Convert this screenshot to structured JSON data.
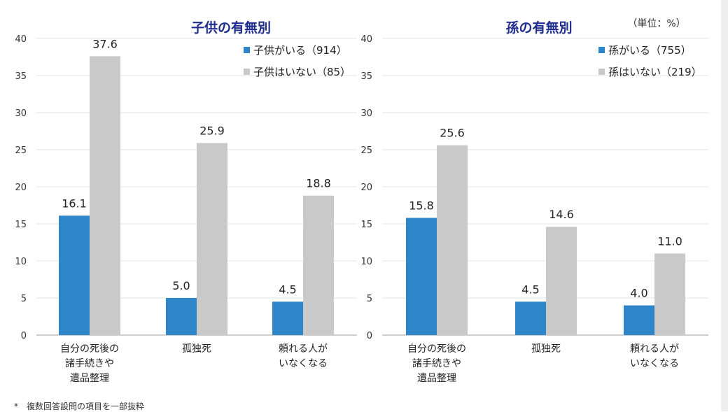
{
  "unit_label": "（単位：%）",
  "footnote": "*　複数回答設問の項目を一部抜粋",
  "colors": {
    "series1": "#2e86c8",
    "series2": "#c9c9c9",
    "title": "#1f2d8f"
  },
  "chart_data": [
    {
      "type": "bar",
      "title": "子供の有無別",
      "categories": [
        [
          "自分の死後の",
          "諸手続きや",
          "遺品整理"
        ],
        [
          "孤独死"
        ],
        [
          "頼れる人が",
          "いなくなる"
        ]
      ],
      "series": [
        {
          "name": "子供がいる（914）",
          "values": [
            16.1,
            5.0,
            4.5
          ]
        },
        {
          "name": "子供はいない（85）",
          "values": [
            37.6,
            25.9,
            18.8
          ]
        }
      ],
      "ylim": [
        0,
        40
      ],
      "yticks": [
        0,
        5,
        10,
        15,
        20,
        25,
        30,
        35,
        40
      ],
      "grid": true,
      "legend": "top-right"
    },
    {
      "type": "bar",
      "title": "孫の有無別",
      "categories": [
        [
          "自分の死後の",
          "諸手続きや",
          "遺品整理"
        ],
        [
          "孤独死"
        ],
        [
          "頼れる人が",
          "いなくなる"
        ]
      ],
      "series": [
        {
          "name": "孫がいる（755）",
          "values": [
            15.8,
            4.5,
            4.0
          ]
        },
        {
          "name": "孫はいない（219）",
          "values": [
            25.6,
            14.6,
            11.0
          ]
        }
      ],
      "ylim": [
        0,
        40
      ],
      "yticks": [
        0,
        5,
        10,
        15,
        20,
        25,
        30,
        35,
        40
      ],
      "grid": true,
      "legend": "top-right"
    }
  ]
}
